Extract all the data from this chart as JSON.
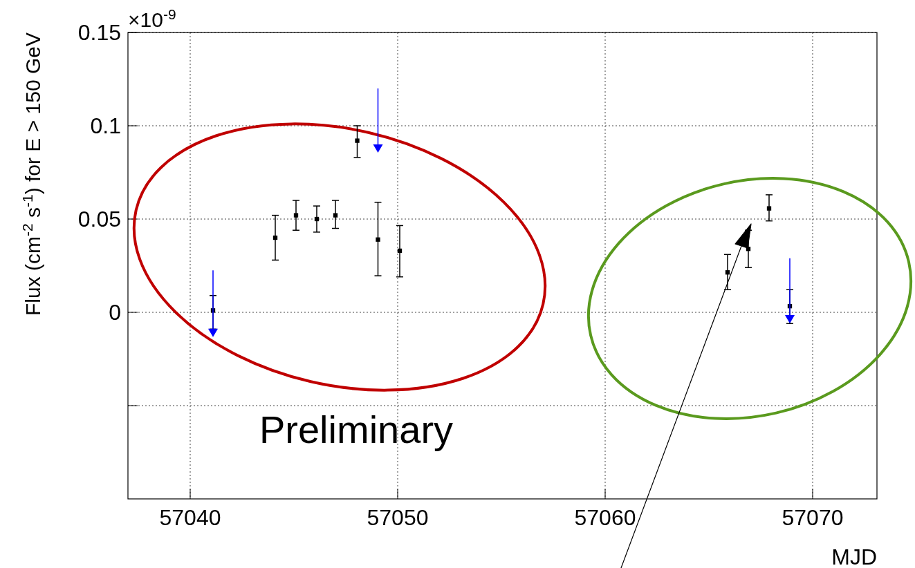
{
  "chart_data": {
    "type": "scatter",
    "ylabel": "Flux (cm$^{-2}$ s$^{-1}$) for E > 150 GeV",
    "xlabel": "MJD",
    "annotations": [
      "×10$^{-9}$",
      "Preliminary"
    ],
    "xlim": [
      57037,
      57073.1
    ],
    "xticks": [
      57040,
      57050,
      57060,
      57070
    ],
    "ylim": [
      -0.1,
      0.15
    ],
    "yticks": [
      0.15,
      0.1,
      0.05,
      0,
      {
        "value": -0.05,
        "label": null
      }
    ],
    "grid": true,
    "marker": "square",
    "series": [
      {
        "color": "#000000",
        "x": [
          57041.1,
          57044.1,
          57045.1,
          57046.1,
          57047.0,
          57048.05,
          57049.05,
          57050.1,
          57065.9,
          57066.9,
          57067.9,
          57068.9
        ],
        "values": [
          0.001,
          0.04,
          0.052,
          0.05,
          0.052,
          0.092,
          0.039,
          0.033,
          0.0214,
          0.034,
          0.0557,
          0.0033
        ],
        "errors": [
          [
            -0.009,
            0.009
          ],
          [
            0.028,
            0.052
          ],
          [
            0.044,
            0.06
          ],
          [
            0.043,
            0.057
          ],
          [
            0.045,
            0.06
          ],
          [
            0.083,
            0.1
          ],
          [
            0.0196,
            0.059
          ],
          [
            0.019,
            0.0465
          ],
          [
            0.0122,
            0.031
          ],
          [
            0.024,
            0.044
          ],
          [
            0.049,
            0.063
          ],
          [
            -0.006,
            0.0122
          ]
        ]
      },
      {
        "marker": "triangle",
        "color": "#0000ff",
        "x": [
          57041.1,
          57049.05,
          57068.9
        ],
        "values": [
          -0.011,
          0.0878,
          -0.0037
        ],
        "errors": [
          [
            -0.011,
            0.0225
          ],
          [
            0.0878,
            0.12
          ],
          [
            -0.0037,
            0.029
          ]
        ]
      }
    ]
  }
}
